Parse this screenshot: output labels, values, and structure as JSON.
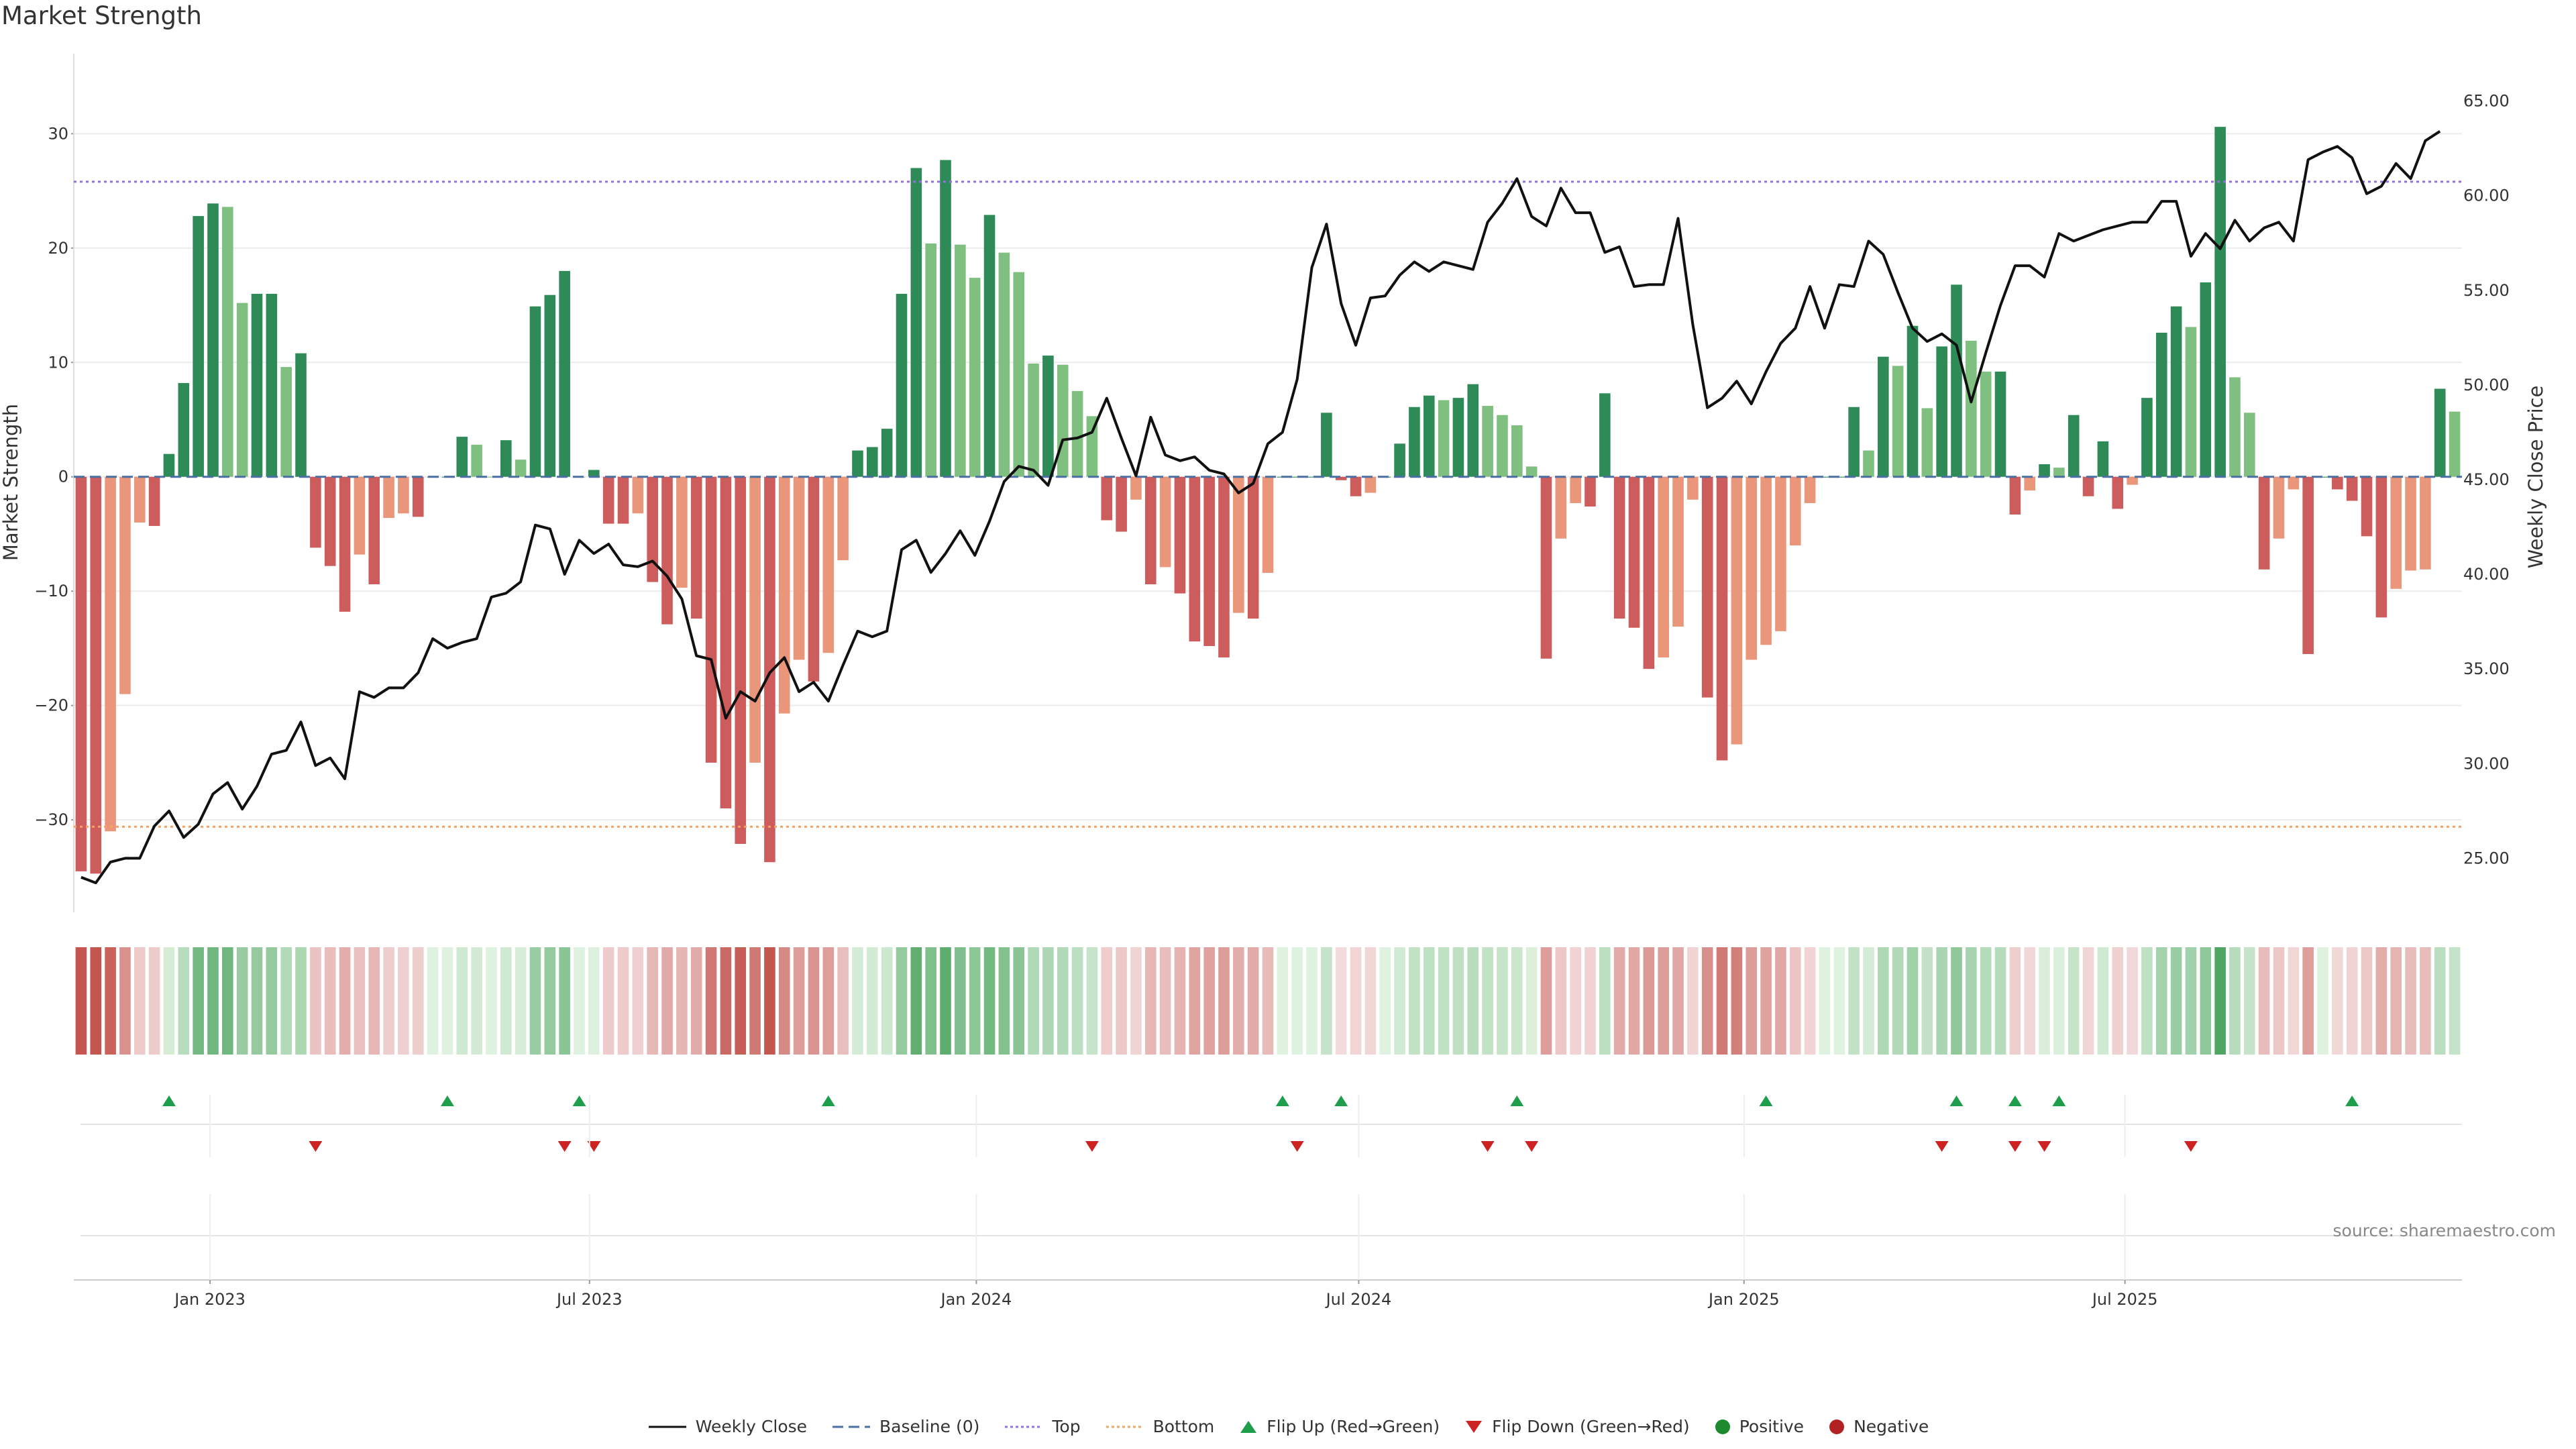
{
  "chart_data": {
    "type": "bar+line",
    "title": "Market Strength",
    "ylabel_left": "Market Strength",
    "ylabel_right": "Weekly Close Price",
    "ylim_left": [
      -37.5,
      37
    ],
    "ylim_right": [
      22.5,
      67.5
    ],
    "left_ticks": [
      30,
      20,
      10,
      0,
      -10,
      -20,
      -30
    ],
    "left_tick_labels": [
      "30",
      "20",
      "10",
      "0",
      "−10",
      "−20",
      "−30"
    ],
    "right_ticks": [
      65,
      60,
      55,
      50,
      45,
      40,
      35,
      30,
      25
    ],
    "right_tick_labels": [
      "65.00",
      "60.00",
      "55.00",
      "50.00",
      "45.00",
      "40.00",
      "35.00",
      "30.00",
      "25.00"
    ],
    "top_line": 25.8,
    "bottom_line": -30.6,
    "x_axis_labels": [
      {
        "label": "Jan 2023",
        "week": 9.3
      },
      {
        "label": "Jul 2023",
        "week": 35.2
      },
      {
        "label": "Jan 2024",
        "week": 61.6
      },
      {
        "label": "Jul 2024",
        "week": 87.7
      },
      {
        "label": "Jan 2025",
        "week": 114.0
      },
      {
        "label": "Jul 2025",
        "week": 140.0
      }
    ],
    "strength": [
      -34.5,
      -34.7,
      -31,
      -19,
      -4,
      -4.3,
      2,
      8.2,
      22.8,
      23.9,
      23.6,
      15.2,
      16,
      16,
      9.6,
      10.8,
      -6.2,
      -7.8,
      -11.8,
      -6.8,
      -9.4,
      -3.6,
      -3.2,
      -3.5,
      0,
      0,
      3.5,
      2.8,
      0,
      3.2,
      1.5,
      14.9,
      15.9,
      18,
      0,
      0.6,
      -4.1,
      -4.1,
      -3.2,
      -9.2,
      -12.9,
      -9.7,
      -12.4,
      -25,
      -29,
      -32.1,
      -25,
      -33.7,
      -20.7,
      -16,
      -17.9,
      -15.4,
      -7.3,
      2.3,
      2.6,
      4.2,
      16,
      27,
      20.4,
      27.7,
      20.3,
      17.4,
      22.9,
      19.6,
      17.9,
      9.9,
      10.6,
      9.8,
      7.5,
      5.3,
      -3.8,
      -4.8,
      -2,
      -9.4,
      -7.9,
      -10.2,
      -14.4,
      -14.8,
      -15.8,
      -11.9,
      -12.4,
      -8.4,
      0,
      0,
      0,
      5.6,
      -0.3,
      -1.7,
      -1.4,
      0,
      2.9,
      6.1,
      7.1,
      6.7,
      6.9,
      8.1,
      6.2,
      5.4,
      4.5,
      0.9,
      -15.9,
      -5.4,
      -2.3,
      -2.6,
      7.3,
      -12.4,
      -13.2,
      -16.8,
      -15.8,
      -13.1,
      -2,
      -19.3,
      -24.8,
      -23.4,
      -16,
      -14.7,
      -13.5,
      -6,
      -2.3,
      0,
      0,
      6.1,
      2.3,
      10.5,
      9.7,
      13.2,
      6,
      11.4,
      16.8,
      11.9,
      9.2,
      9.2,
      -3.3,
      -1.2,
      1.1,
      0.8,
      5.4,
      -1.7,
      3.1,
      -2.8,
      -0.7,
      6.9,
      12.6,
      14.9,
      13.1,
      17,
      30.6,
      8.7,
      5.6,
      -8.1,
      -5.4,
      -1.1,
      -15.5,
      0,
      -1.1,
      -2.1,
      -5.2,
      -12.3,
      -9.8,
      -8.2,
      -8.1,
      7.7,
      5.7
    ],
    "weekly_close": [
      24,
      23.7,
      24.8,
      25,
      25,
      26.7,
      27.5,
      26.1,
      26.8,
      28.4,
      29,
      27.6,
      28.8,
      30.5,
      30.7,
      32.2,
      29.9,
      30.3,
      29.2,
      33.8,
      33.5,
      34,
      34,
      34.8,
      36.6,
      36.1,
      36.4,
      36.6,
      38.8,
      39,
      39.6,
      42.6,
      42.4,
      40,
      41.8,
      41.1,
      41.6,
      40.5,
      40.4,
      40.7,
      39.9,
      38.7,
      35.7,
      35.5,
      32.4,
      33.8,
      33.3,
      34.8,
      35.6,
      33.8,
      34.3,
      33.3,
      35.2,
      37,
      36.7,
      37,
      41.3,
      41.8,
      40.1,
      41.1,
      42.3,
      41,
      42.8,
      44.9,
      45.7,
      45.5,
      44.7,
      47.1,
      47.2,
      47.5,
      49.3,
      47.2,
      45.2,
      48.3,
      46.3,
      46,
      46.2,
      45.5,
      45.3,
      44.3,
      44.8,
      46.9,
      47.5,
      50.3,
      56.2,
      58.5,
      54.3,
      52.1,
      54.6,
      54.7,
      55.8,
      56.5,
      56,
      56.5,
      56.3,
      56.1,
      58.6,
      59.6,
      60.9,
      58.9,
      58.4,
      60.4,
      59.1,
      59.1,
      57,
      57.3,
      55.2,
      55.3,
      55.3,
      58.8,
      53.2,
      48.8,
      49.3,
      50.2,
      49,
      50.7,
      52.2,
      53,
      55.2,
      53,
      55.3,
      55.2,
      57.6,
      56.9,
      54.9,
      53,
      52.3,
      52.7,
      52.1,
      49.1,
      51.7,
      54.2,
      56.3,
      56.3,
      55.7,
      58,
      57.6,
      57.9,
      58.2,
      58.4,
      58.6,
      58.6,
      59.7,
      59.7,
      56.8,
      58,
      57.2,
      58.7,
      57.6,
      58.3,
      58.6,
      57.6,
      61.9,
      62.3,
      62.6,
      62,
      60.1,
      60.5,
      61.7,
      60.9,
      62.9,
      63.4
    ],
    "flip_up_weeks": [
      6,
      25,
      34,
      51,
      82,
      86,
      98,
      115,
      128,
      132,
      135,
      155
    ],
    "flip_down_weeks": [
      16,
      33,
      35,
      69,
      83,
      96,
      99,
      127,
      132,
      134,
      144
    ],
    "colors": {
      "strong_green": "#2e8b57",
      "light_green": "#7fbf7f",
      "strong_red": "#cd5c5c",
      "light_red": "#e9967a",
      "top_line": "#9370db",
      "bottom_line": "#f4a460",
      "baseline": "#4a6fa5",
      "close_line": "#111111",
      "flip_up": "#1e9e4a",
      "flip_down": "#cc2222"
    }
  },
  "source_note": "source: sharemaestro.com",
  "legend": {
    "weekly_close": "Weekly Close",
    "baseline": "Baseline (0)",
    "top": "Top",
    "bottom": "Bottom",
    "flip_up": "Flip Up (Red→Green)",
    "flip_down": "Flip Down (Green→Red)",
    "positive": "Positive",
    "negative": "Negative"
  }
}
